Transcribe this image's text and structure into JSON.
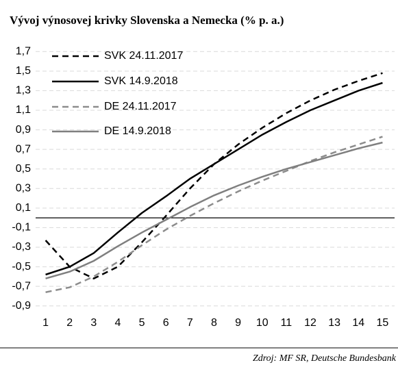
{
  "chart_data": {
    "type": "line",
    "title": "Vývoj výnosovej krivky Slovenska a Nemecka (% p. a.)",
    "source": "Zdroj: MF SR, Deutsche Bundesbank",
    "categories": [
      "1",
      "2",
      "3",
      "4",
      "5",
      "6",
      "7",
      "8",
      "9",
      "10",
      "11",
      "12",
      "13",
      "14",
      "15"
    ],
    "series": [
      {
        "name": "SVK 24.11.2017",
        "color": "#000000",
        "dash": "dashed",
        "values": [
          -0.23,
          -0.5,
          -0.62,
          -0.5,
          -0.25,
          0.02,
          0.3,
          0.55,
          0.75,
          0.92,
          1.07,
          1.2,
          1.31,
          1.4,
          1.48
        ]
      },
      {
        "name": "SVK 14.9.2018",
        "color": "#000000",
        "dash": "solid",
        "values": [
          -0.58,
          -0.5,
          -0.36,
          -0.15,
          0.05,
          0.22,
          0.4,
          0.55,
          0.7,
          0.85,
          0.98,
          1.1,
          1.2,
          1.3,
          1.38
        ]
      },
      {
        "name": "DE 24.11.2017",
        "color": "#8c8c8c",
        "dash": "dashed",
        "values": [
          -0.76,
          -0.71,
          -0.6,
          -0.45,
          -0.28,
          -0.12,
          0.02,
          0.15,
          0.27,
          0.38,
          0.48,
          0.58,
          0.67,
          0.75,
          0.83
        ]
      },
      {
        "name": "DE 14.9.2018",
        "color": "#7f7f7f",
        "dash": "solid",
        "values": [
          -0.62,
          -0.55,
          -0.44,
          -0.29,
          -0.15,
          -0.02,
          0.11,
          0.23,
          0.33,
          0.42,
          0.5,
          0.57,
          0.64,
          0.71,
          0.77
        ]
      }
    ],
    "ylim": [
      -1.0,
      1.8
    ],
    "yticks": [
      {
        "value": -0.9,
        "label": "-0,9"
      },
      {
        "value": -0.7,
        "label": "-0,7"
      },
      {
        "value": -0.5,
        "label": "-0,5"
      },
      {
        "value": -0.3,
        "label": "-0,3"
      },
      {
        "value": -0.1,
        "label": "-0,1"
      },
      {
        "value": 0.1,
        "label": "0,1"
      },
      {
        "value": 0.3,
        "label": "0,3"
      },
      {
        "value": 0.5,
        "label": "0,5"
      },
      {
        "value": 0.7,
        "label": "0,7"
      },
      {
        "value": 0.9,
        "label": "0,9"
      },
      {
        "value": 1.1,
        "label": "1,1"
      },
      {
        "value": 1.3,
        "label": "1,3"
      },
      {
        "value": 1.5,
        "label": "1,5"
      },
      {
        "value": 1.7,
        "label": "1,7"
      }
    ],
    "grid": true,
    "legend": "top-left"
  }
}
